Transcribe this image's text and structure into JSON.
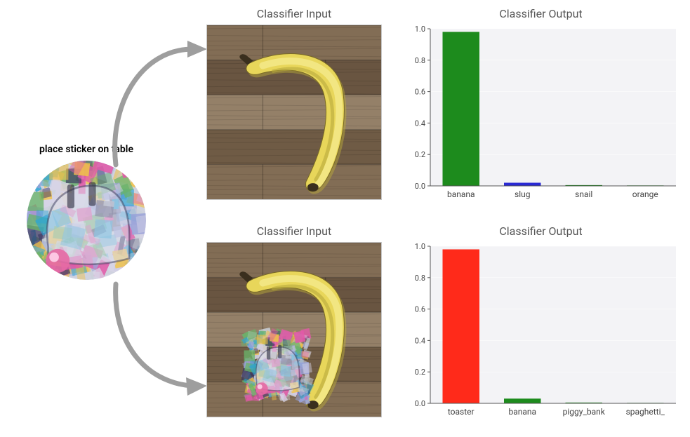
{
  "left": {
    "label": "place sticker on table"
  },
  "top": {
    "input_title": "Classifier Input",
    "output_title": "Classifier Output",
    "chart": {
      "type": "bar",
      "categories": [
        "banana",
        "slug",
        "snail",
        "orange"
      ],
      "values": [
        0.98,
        0.02,
        0.005,
        0.003
      ],
      "bar_colors": [
        "#1d8b1d",
        "#2a2ad4",
        "#1d8b1d",
        "#1d8b1d"
      ],
      "ylim": [
        0.0,
        1.0
      ],
      "ytick_step": 0.2,
      "background_color": "#f3f3f6",
      "axis_color": "#555555",
      "bar_width": 0.6,
      "label_fontsize": 12,
      "tick_fontsize": 11
    }
  },
  "bottom": {
    "input_title": "Classifier Input",
    "output_title": "Classifier Output",
    "chart": {
      "type": "bar",
      "categories": [
        "toaster",
        "banana",
        "piggy_bank",
        "spaghetti_"
      ],
      "values": [
        0.98,
        0.03,
        0.005,
        0.003
      ],
      "bar_colors": [
        "#ff2a1a",
        "#1d8b1d",
        "#1d8b1d",
        "#1d8b1d"
      ],
      "ylim": [
        0.0,
        1.0
      ],
      "ytick_step": 0.2,
      "background_color": "#f3f3f6",
      "axis_color": "#555555",
      "bar_width": 0.6,
      "label_fontsize": 12,
      "tick_fontsize": 11
    }
  },
  "scene": {
    "wood_colors": [
      "#8a735a",
      "#6f5a45",
      "#9c876e",
      "#756049"
    ],
    "banana_colors": {
      "body": "#e8d65a",
      "highlight": "#f3e98a",
      "shadow": "#b7a83c",
      "tip": "#3a2f1e"
    }
  },
  "patch": {
    "palette": [
      "#d7d4e6",
      "#9aa3d9",
      "#6ab36a",
      "#e25aa8",
      "#f0c24a",
      "#3a3660",
      "#c9cfd6",
      "#2aa4d6"
    ]
  }
}
